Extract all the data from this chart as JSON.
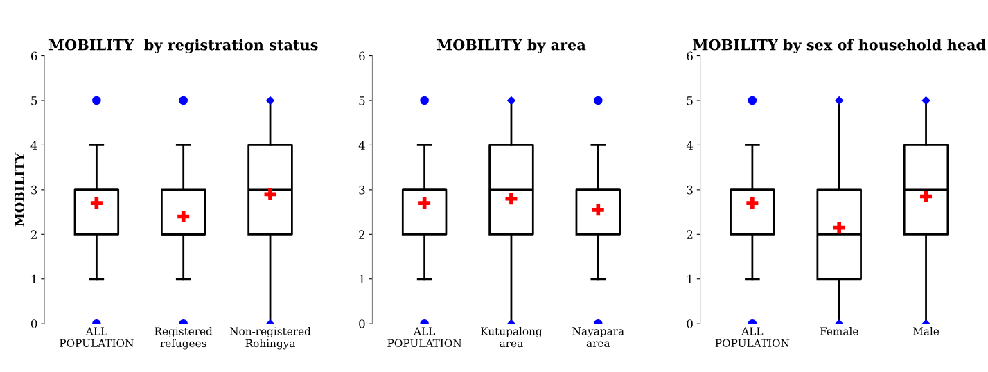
{
  "chart_data": [
    {
      "type": "box",
      "title": "MOBILITY  by registration status",
      "ylabel": "MOBILITY",
      "categories": [
        "ALL POPULATION",
        "Registered refugees",
        "Non-registered Rohingya"
      ],
      "ylim": [
        0,
        6
      ],
      "yticks": [
        0,
        1,
        2,
        3,
        4,
        5,
        6
      ],
      "grid": false,
      "boxes": [
        {
          "low": 1,
          "q1": 2,
          "median": 3,
          "q3": 3,
          "high": 4,
          "outliers": [
            0,
            5
          ]
        },
        {
          "low": 1,
          "q1": 2,
          "median": 2,
          "q3": 3,
          "high": 4,
          "outliers": [
            0,
            5
          ]
        },
        {
          "low": 0,
          "q1": 2,
          "median": 3,
          "q3": 4,
          "high": 5
        }
      ],
      "series": [
        {
          "type": "scatter",
          "x": [
            "ALL POPULATION",
            "Registered refugees",
            "Non-registered Rohingya"
          ],
          "values": [
            2.7,
            2.4,
            2.9
          ],
          "color": "#ff0000",
          "marker": "cross"
        },
        {
          "type": "scatter",
          "x": [
            "ALL POPULATION",
            "Registered refugees",
            "Non-registered Rohingya"
          ],
          "values": [
            null,
            null,
            0
          ],
          "color": "#0000ff",
          "marker": "diamond"
        },
        {
          "type": "scatter",
          "x": [
            "ALL POPULATION",
            "Registered refugees",
            "Non-registered Rohingya"
          ],
          "values": [
            null,
            null,
            5
          ],
          "color": "#0000ff",
          "marker": "diamond"
        }
      ]
    },
    {
      "type": "box",
      "title": "MOBILITY by area",
      "categories": [
        "ALL POPULATION",
        "Kutupalong area",
        "Nayapara area"
      ],
      "ylim": [
        0,
        6
      ],
      "yticks": [
        0,
        1,
        2,
        3,
        4,
        5,
        6
      ],
      "grid": false,
      "boxes": [
        {
          "low": 1,
          "q1": 2,
          "median": 3,
          "q3": 3,
          "high": 4,
          "outliers": [
            0,
            5
          ]
        },
        {
          "low": 0,
          "q1": 2,
          "median": 3,
          "q3": 4,
          "high": 5
        },
        {
          "low": 1,
          "q1": 2,
          "median": 3,
          "q3": 3,
          "high": 4,
          "outliers": [
            0,
            5
          ]
        }
      ],
      "series": [
        {
          "type": "scatter",
          "x": [
            "ALL POPULATION",
            "Kutupalong area",
            "Nayapara area"
          ],
          "values": [
            2.7,
            2.8,
            2.55
          ],
          "color": "#ff0000",
          "marker": "cross"
        },
        {
          "type": "scatter",
          "x": [
            "ALL POPULATION",
            "Kutupalong area",
            "Nayapara area"
          ],
          "values": [
            null,
            0,
            null
          ],
          "color": "#0000ff",
          "marker": "diamond"
        },
        {
          "type": "scatter",
          "x": [
            "ALL POPULATION",
            "Kutupalong area",
            "Nayapara area"
          ],
          "values": [
            null,
            5,
            null
          ],
          "color": "#0000ff",
          "marker": "diamond"
        }
      ]
    },
    {
      "type": "box",
      "title": "MOBILITY by sex of household head",
      "categories": [
        "ALL POPULATION",
        "Female",
        "Male"
      ],
      "ylim": [
        0,
        6
      ],
      "yticks": [
        0,
        1,
        2,
        3,
        4,
        5,
        6
      ],
      "grid": false,
      "boxes": [
        {
          "low": 1,
          "q1": 2,
          "median": 3,
          "q3": 3,
          "high": 4,
          "outliers": [
            0,
            5
          ]
        },
        {
          "low": 0,
          "q1": 1,
          "median": 2,
          "q3": 3,
          "high": 5
        },
        {
          "low": 0,
          "q1": 2,
          "median": 3,
          "q3": 4,
          "high": 5
        }
      ],
      "series": [
        {
          "type": "scatter",
          "x": [
            "ALL POPULATION",
            "Female",
            "Male"
          ],
          "values": [
            2.7,
            2.15,
            2.85
          ],
          "color": "#ff0000",
          "marker": "cross"
        },
        {
          "type": "scatter",
          "x": [
            "ALL POPULATION",
            "Female",
            "Male"
          ],
          "values": [
            null,
            0,
            0
          ],
          "color": "#0000ff",
          "marker": "diamond"
        },
        {
          "type": "scatter",
          "x": [
            "ALL POPULATION",
            "Female",
            "Male"
          ],
          "values": [
            null,
            5,
            5
          ],
          "color": "#0000ff",
          "marker": "diamond"
        }
      ]
    }
  ]
}
